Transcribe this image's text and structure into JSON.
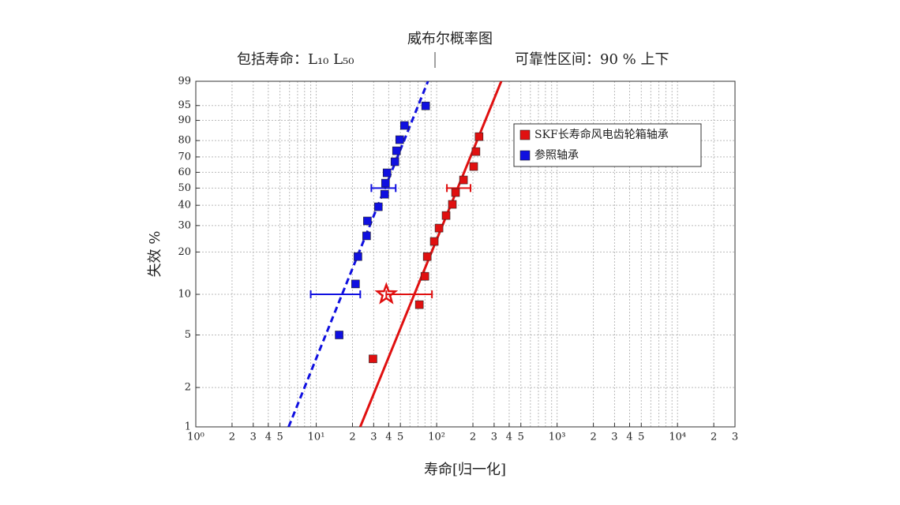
{
  "chart_data": {
    "type": "weibull",
    "title": "威布尔概率图",
    "subtitle_left": "包括寿命：L₁₀ L₅₀",
    "subtitle_right": "可靠性区间：90 % 上下",
    "x_label": "寿命[归一化]",
    "y_label": "失效 %",
    "xscale": "log",
    "xlim": [
      1,
      30000
    ],
    "xticks": [
      {
        "value": 1,
        "label": "10⁰"
      },
      2,
      3,
      4,
      5,
      {
        "value": 10,
        "label": "10¹"
      },
      {
        "value": 20,
        "label": "2"
      },
      {
        "value": 30,
        "label": "3"
      },
      {
        "value": 40,
        "label": "4"
      },
      {
        "value": 50,
        "label": "5"
      },
      {
        "value": 100,
        "label": "10²"
      },
      {
        "value": 200,
        "label": "2"
      },
      {
        "value": 300,
        "label": "3"
      },
      {
        "value": 400,
        "label": "4"
      },
      {
        "value": 500,
        "label": "5"
      },
      {
        "value": 1000,
        "label": "10³"
      },
      {
        "value": 2000,
        "label": "2"
      },
      {
        "value": 3000,
        "label": "3"
      },
      {
        "value": 4000,
        "label": "4"
      },
      {
        "value": 5000,
        "label": "5"
      },
      {
        "value": 10000,
        "label": "10⁴"
      },
      {
        "value": 20000,
        "label": "2"
      },
      {
        "value": 30000,
        "label": "3"
      }
    ],
    "xminorgrid": [
      6,
      7,
      8,
      9,
      60,
      70,
      80,
      90,
      600,
      700,
      800,
      900,
      6000,
      7000,
      8000,
      9000
    ],
    "ylim": [
      1,
      99
    ],
    "yticks": [
      1,
      2,
      5,
      10,
      20,
      30,
      40,
      50,
      60,
      70,
      80,
      90,
      95,
      99
    ],
    "grid": true,
    "legend": "upper right",
    "series": [
      {
        "name": "SKF长寿命风电齿轮箱轴承",
        "color": "#e01010",
        "x": [
          29.6,
          71.8,
          79.8,
          83.5,
          95.5,
          104.6,
          119.7,
          135,
          143.5,
          167,
          203,
          212,
          225
        ],
        "values": [
          3.3,
          8.4,
          13.5,
          18.6,
          23.6,
          28.9,
          34.7,
          40.5,
          47.3,
          55.1,
          63.8,
          73.4,
          82.2
        ]
      },
      {
        "name": "参照轴承",
        "color": "#1010e0",
        "x": [
          15.5,
          21.2,
          22.2,
          26.2,
          26.6,
          32.8,
          37.0,
          37.6,
          38.7,
          45.0,
          46.4,
          49.3,
          54.0,
          81.0
        ],
        "values": [
          5.0,
          11.9,
          18.6,
          25.7,
          32.1,
          39.2,
          46.3,
          53.1,
          59.7,
          66.9,
          73.9,
          80.5,
          87.8,
          94.9
        ]
      }
    ],
    "fit_lines": [
      {
        "color": "#e01010",
        "dashed": false,
        "x": [
          23.2,
          344
        ],
        "values": [
          1,
          99
        ]
      },
      {
        "color": "#1010e0",
        "dashed": true,
        "x": [
          5.9,
          84.7
        ],
        "values": [
          1,
          99
        ]
      }
    ],
    "intervals": [
      {
        "color": "#1010e0",
        "y": 10,
        "low": 9.0,
        "high": 23.2
      },
      {
        "color": "#1010e0",
        "y": 50,
        "low": 28.7,
        "high": 45.7
      },
      {
        "color": "#e01010",
        "y": 10,
        "low": 38.2,
        "high": 91.4
      },
      {
        "color": "#e01010",
        "y": 50,
        "low": 121.6,
        "high": 191
      }
    ],
    "star": {
      "color": "#e01010",
      "x": 38.2,
      "y": 10
    }
  }
}
